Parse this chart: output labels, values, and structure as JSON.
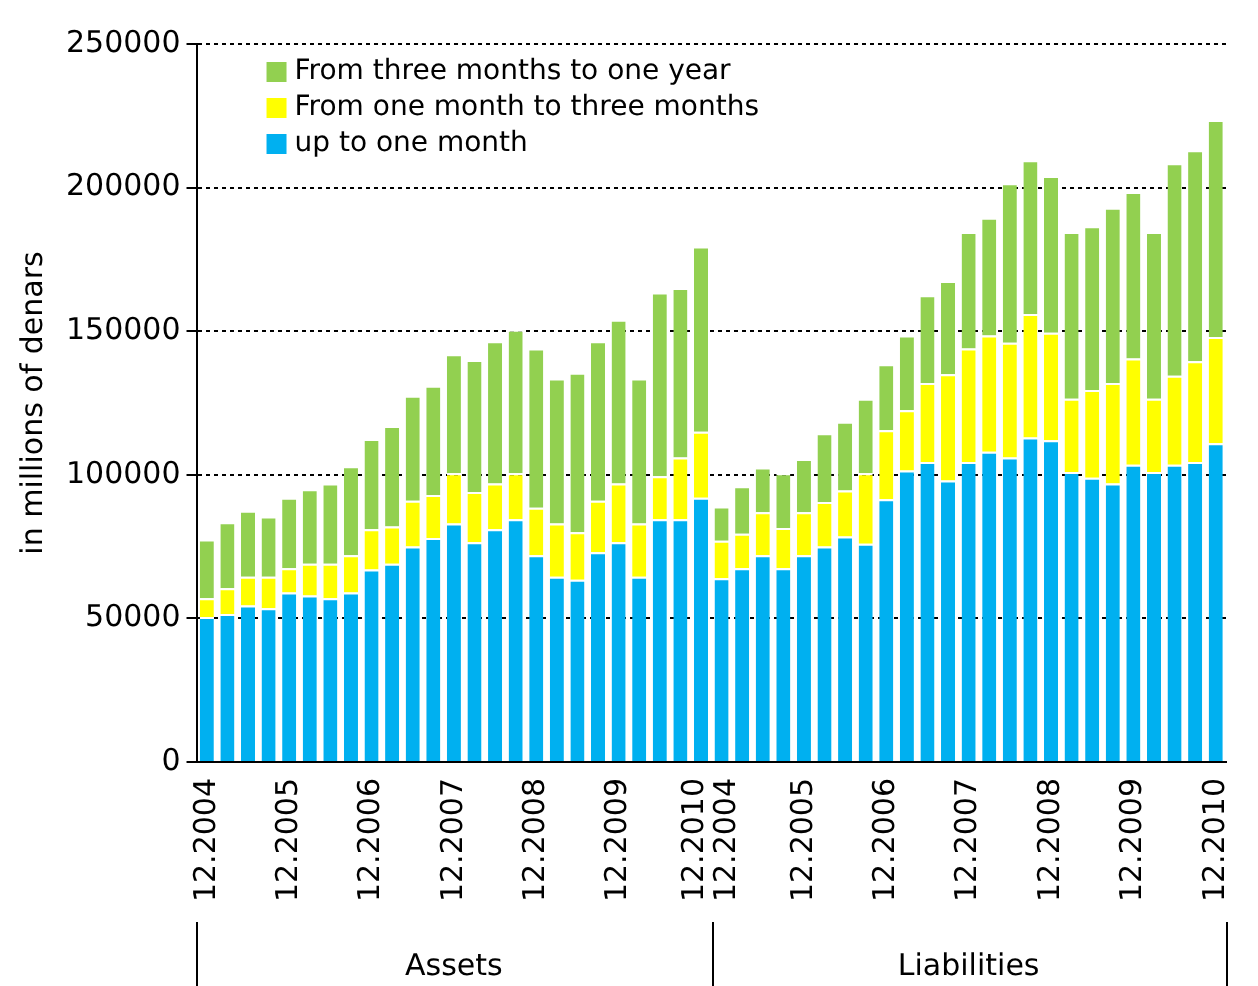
{
  "chart_data": {
    "type": "bar",
    "stacked": true,
    "ylabel": "in millions of denars",
    "categories": [
      "12.2004",
      null,
      null,
      null,
      "12.2005",
      null,
      null,
      null,
      "12.2006",
      null,
      null,
      null,
      "12.2007",
      null,
      null,
      null,
      "12.2008",
      null,
      null,
      null,
      "12.2009",
      null,
      null,
      null,
      "12.2010",
      "12.2004",
      null,
      null,
      null,
      "12.2005",
      null,
      null,
      null,
      "12.2006",
      null,
      null,
      null,
      "12.2007",
      null,
      null,
      null,
      "12.2008",
      null,
      null,
      null,
      "12.2009",
      null,
      null,
      null,
      "12.2010"
    ],
    "series": [
      {
        "name": "up to one month",
        "color": "#00b0f0",
        "values": [
          50500,
          51500,
          54500,
          53500,
          59000,
          58000,
          57000,
          59000,
          67000,
          69000,
          75000,
          78000,
          83000,
          76500,
          81000,
          84500,
          72000,
          64500,
          63500,
          73000,
          76500,
          64500,
          84500,
          84500,
          92000,
          64000,
          67500,
          72000,
          67500,
          72000,
          75000,
          78500,
          76000,
          91500,
          101500,
          104500,
          98000,
          104500,
          108000,
          106000,
          113000,
          112000,
          101000,
          99000,
          97000,
          103500,
          101000,
          103500,
          104500,
          111000
        ]
      },
      {
        "name": "From one month to three months",
        "color": "#ffff00",
        "values": [
          6500,
          9000,
          10000,
          11000,
          8500,
          11000,
          12000,
          13000,
          14000,
          13000,
          16000,
          15000,
          17500,
          17500,
          16000,
          16000,
          16500,
          18500,
          16500,
          18000,
          20500,
          18500,
          15000,
          21500,
          23000,
          13000,
          12000,
          15000,
          14000,
          15000,
          15500,
          16000,
          24500,
          24000,
          21000,
          27500,
          37000,
          39500,
          40500,
          40000,
          43000,
          37500,
          25500,
          30500,
          35000,
          37000,
          25500,
          31000,
          35000,
          37000
        ]
      },
      {
        "name": "From three months to one year",
        "color": "#92d050",
        "values": [
          20500,
          23000,
          23000,
          21000,
          24500,
          26000,
          28000,
          31000,
          31500,
          35000,
          36500,
          38000,
          41500,
          46000,
          49500,
          50000,
          55500,
          50500,
          55500,
          55500,
          57000,
          50500,
          64000,
          59000,
          64500,
          12000,
          16500,
          15500,
          19000,
          18500,
          24000,
          24000,
          26000,
          23000,
          26000,
          30500,
          32500,
          40500,
          41000,
          55500,
          53500,
          54500,
          58000,
          57000,
          61000,
          58000,
          58000,
          74000,
          73500,
          75500
        ]
      }
    ],
    "ylim": [
      0,
      250000
    ],
    "yticks": [
      0,
      50000,
      100000,
      150000,
      200000,
      250000
    ],
    "grid": "y",
    "legend": "top left",
    "annotations": [
      "Assets",
      "Liabilities"
    ]
  }
}
